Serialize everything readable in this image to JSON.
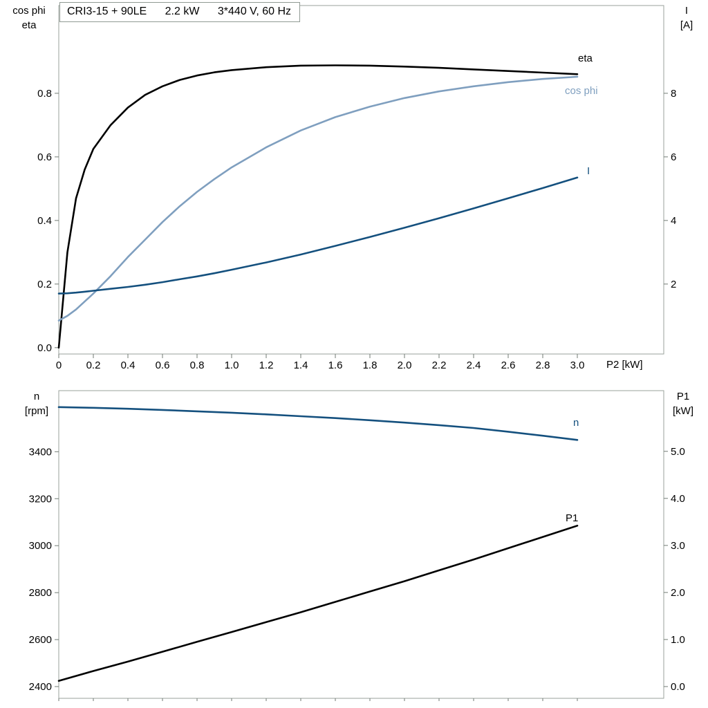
{
  "title": {
    "model": "CRI3-15 + 90LE",
    "power": "2.2 kW",
    "voltage": "3*440 V, 60 Hz"
  },
  "axes": {
    "top_left": {
      "line1": "cos phi",
      "line2": "eta"
    },
    "top_right": {
      "line1": "I",
      "line2": "[A]"
    },
    "bottom_left": {
      "line1": "n",
      "line2": "[rpm]"
    },
    "bottom_right": {
      "line1": "P1",
      "line2": "[kW]"
    },
    "x_title": "P2 [kW]"
  },
  "colors": {
    "curve_black": "#000000",
    "curve_dark_blue": "#14507e",
    "curve_light_blue": "#7f9fbf",
    "plot_border": "#9aa29b",
    "tick": "#707a73",
    "text": "#000000",
    "background": "#ffffff"
  },
  "chart_data": [
    {
      "type": "line",
      "title": "CRI3-15 + 90LE  2.2 kW  3*440 V, 60 Hz",
      "xlabel": "P2 [kW]",
      "ylabel_left": "cos phi / eta",
      "ylabel_right": "I [A]",
      "xlim": [
        0,
        3.5
      ],
      "ylim_left": [
        -0.02,
        1.076
      ],
      "ylim_right": [
        -0.2,
        10.76
      ],
      "grid": false,
      "xticks": [
        0,
        0.2,
        0.4,
        0.6,
        0.8,
        1.0,
        1.2,
        1.4,
        1.6,
        1.8,
        2.0,
        2.2,
        2.4,
        2.6,
        2.8,
        3.0
      ],
      "xtick_labels": [
        "0",
        "0.2",
        "0.4",
        "0.6",
        "0.8",
        "1.0",
        "1.2",
        "1.4",
        "1.6",
        "1.8",
        "2.0",
        "2.2",
        "2.4",
        "2.6",
        "2.8",
        "3.0"
      ],
      "yticks_left": [
        0,
        0.2,
        0.4,
        0.6,
        0.8
      ],
      "ytick_labels_left": [
        "0.0",
        "0.2",
        "0.4",
        "0.6",
        "0.8"
      ],
      "yticks_right": [
        2,
        4,
        6,
        8
      ],
      "ytick_labels_right": [
        "2",
        "4",
        "6",
        "8"
      ],
      "series": [
        {
          "name": "eta",
          "label": "eta",
          "axis": "left",
          "color": "curve_black",
          "x": [
            0,
            0.05,
            0.1,
            0.15,
            0.2,
            0.3,
            0.4,
            0.5,
            0.6,
            0.7,
            0.8,
            0.9,
            1.0,
            1.2,
            1.4,
            1.6,
            1.8,
            2.0,
            2.2,
            2.4,
            2.6,
            2.8,
            3.0
          ],
          "y": [
            0,
            0.3,
            0.47,
            0.56,
            0.625,
            0.7,
            0.755,
            0.795,
            0.822,
            0.842,
            0.856,
            0.866,
            0.873,
            0.882,
            0.887,
            0.888,
            0.887,
            0.884,
            0.88,
            0.875,
            0.87,
            0.865,
            0.86
          ]
        },
        {
          "name": "cos-phi",
          "label": "cos phi",
          "axis": "left",
          "color": "curve_light_blue",
          "x": [
            0,
            0.05,
            0.1,
            0.15,
            0.2,
            0.3,
            0.4,
            0.5,
            0.6,
            0.7,
            0.8,
            0.9,
            1.0,
            1.2,
            1.4,
            1.6,
            1.8,
            2.0,
            2.2,
            2.4,
            2.6,
            2.8,
            3.0
          ],
          "y": [
            0.085,
            0.1,
            0.12,
            0.145,
            0.17,
            0.225,
            0.285,
            0.34,
            0.395,
            0.445,
            0.49,
            0.53,
            0.567,
            0.63,
            0.683,
            0.725,
            0.758,
            0.785,
            0.806,
            0.822,
            0.835,
            0.845,
            0.852
          ]
        },
        {
          "name": "current",
          "label": "I",
          "axis": "right",
          "color": "curve_dark_blue",
          "x": [
            0,
            0.05,
            0.1,
            0.15,
            0.2,
            0.3,
            0.4,
            0.5,
            0.6,
            0.7,
            0.8,
            0.9,
            1.0,
            1.2,
            1.4,
            1.6,
            1.8,
            2.0,
            2.2,
            2.4,
            2.6,
            2.8,
            3.0
          ],
          "y": [
            1.7,
            1.71,
            1.73,
            1.76,
            1.79,
            1.85,
            1.91,
            1.98,
            2.06,
            2.15,
            2.24,
            2.34,
            2.45,
            2.68,
            2.93,
            3.2,
            3.48,
            3.77,
            4.07,
            4.38,
            4.7,
            5.02,
            5.35
          ]
        }
      ]
    },
    {
      "type": "line",
      "title": "",
      "xlabel": "",
      "ylabel_left": "n [rpm]",
      "ylabel_right": "P1 [kW]",
      "xlim": [
        0,
        3.5
      ],
      "ylim_left": [
        2350,
        3660
      ],
      "ylim_right": [
        -0.25,
        6.29
      ],
      "grid": false,
      "xticks": [
        0,
        0.2,
        0.4,
        0.6,
        0.8,
        1.0,
        1.2,
        1.4,
        1.6,
        1.8,
        2.0,
        2.2,
        2.4,
        2.6,
        2.8,
        3.0
      ],
      "xtick_labels": null,
      "yticks_left": [
        2400,
        2600,
        2800,
        3000,
        3200,
        3400
      ],
      "ytick_labels_left": [
        "2400",
        "2600",
        "2800",
        "3000",
        "3200",
        "3400"
      ],
      "yticks_right": [
        0,
        1,
        2,
        3,
        4,
        5
      ],
      "ytick_labels_right": [
        "0.0",
        "1.0",
        "2.0",
        "3.0",
        "4.0",
        "5.0"
      ],
      "series": [
        {
          "name": "speed",
          "label": "n",
          "axis": "left",
          "color": "curve_dark_blue",
          "x": [
            0,
            0.2,
            0.4,
            0.6,
            0.8,
            1.0,
            1.2,
            1.4,
            1.6,
            1.8,
            2.0,
            2.2,
            2.4,
            2.6,
            2.8,
            3.0
          ],
          "y": [
            3590,
            3587,
            3583,
            3578,
            3572,
            3566,
            3559,
            3551,
            3543,
            3534,
            3524,
            3513,
            3501,
            3485,
            3468,
            3450
          ]
        },
        {
          "name": "p1",
          "label": "P1",
          "axis": "right",
          "color": "curve_black",
          "x": [
            0,
            0.2,
            0.4,
            0.6,
            0.8,
            1.0,
            1.2,
            1.4,
            1.6,
            1.8,
            2.0,
            2.2,
            2.4,
            2.6,
            2.8,
            3.0
          ],
          "y": [
            0.12,
            0.33,
            0.53,
            0.74,
            0.95,
            1.16,
            1.37,
            1.58,
            1.8,
            2.02,
            2.24,
            2.47,
            2.7,
            2.94,
            3.18,
            3.42
          ]
        }
      ]
    }
  ]
}
